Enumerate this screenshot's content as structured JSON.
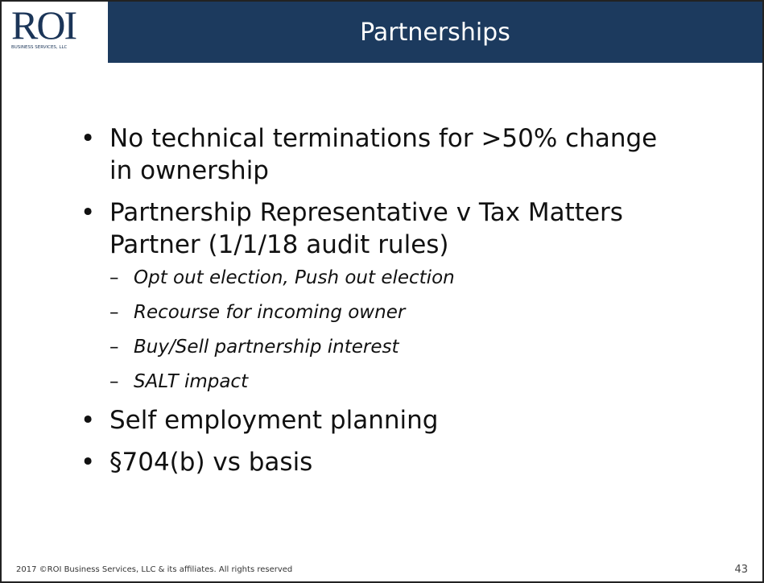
{
  "logo": {
    "text": "ROI",
    "subtext": "BUSINESS SERVICES, LLC"
  },
  "header": {
    "title": "Partnerships"
  },
  "bullets": [
    {
      "text": "No technical terminations for >50% change in ownership",
      "sub": []
    },
    {
      "text": "Partnership Representative v Tax Matters Partner (1/1/18 audit rules)",
      "sub": [
        "Opt out election, Push out election",
        "Recourse for incoming owner",
        "Buy/Sell partnership interest",
        "SALT impact"
      ]
    },
    {
      "text": "Self employment planning",
      "sub": []
    },
    {
      "text": "§704(b) vs basis",
      "sub": []
    }
  ],
  "footer": {
    "copyright": "2017 ©ROI Business Services, LLC & its affiliates.  All rights reserved",
    "page": "43"
  }
}
